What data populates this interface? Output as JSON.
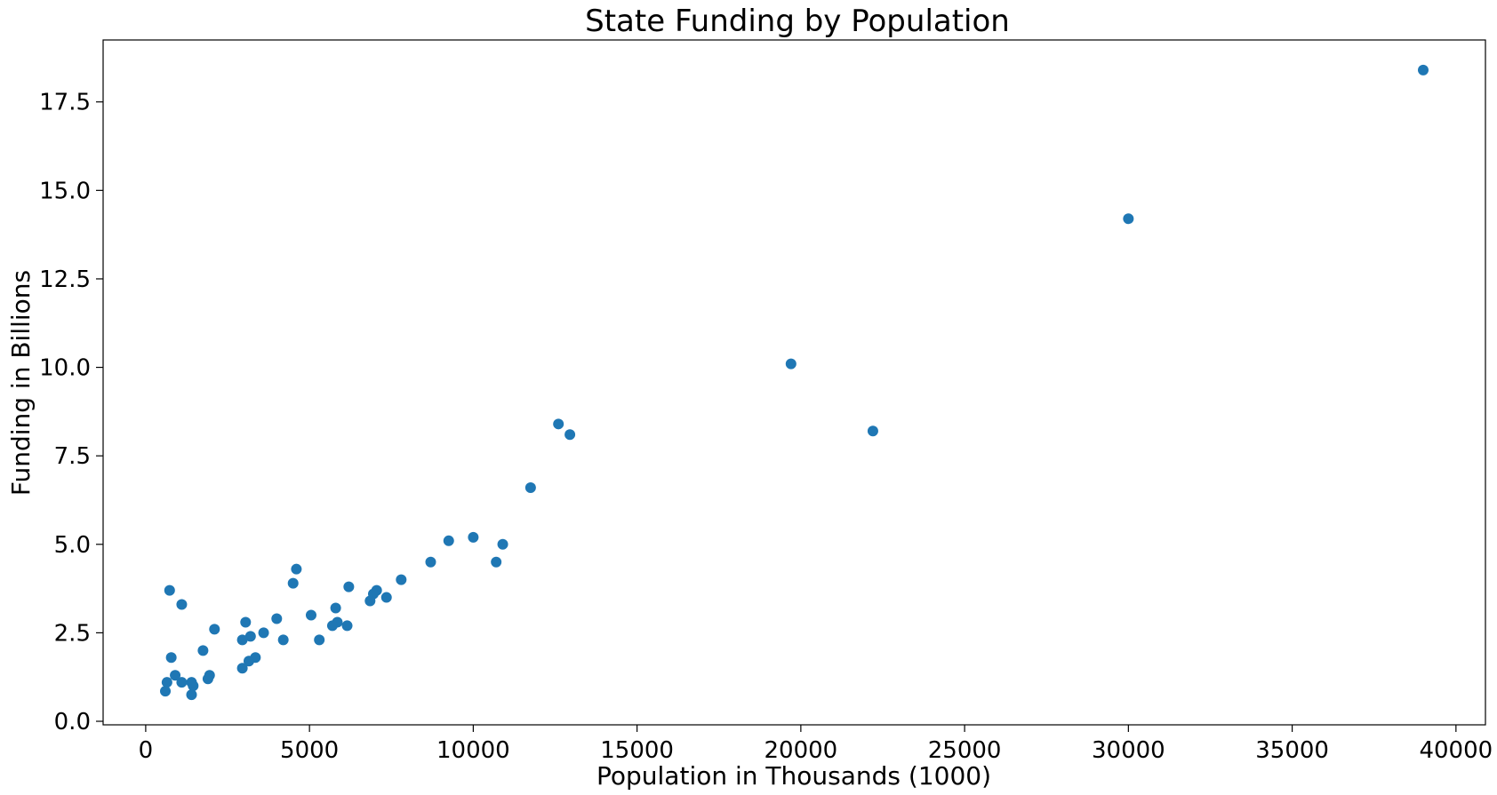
{
  "chart_data": {
    "type": "scatter",
    "title": "State Funding by Population",
    "xlabel": "Population in Thousands (1000)",
    "ylabel": "Funding in Billions",
    "xlim": [
      -1300,
      40900
    ],
    "ylim": [
      -0.1,
      19.25
    ],
    "xticks": [
      0,
      5000,
      10000,
      15000,
      20000,
      25000,
      30000,
      35000,
      40000
    ],
    "xtick_labels": [
      "0",
      "5000",
      "10000",
      "15000",
      "20000",
      "25000",
      "30000",
      "35000",
      "40000"
    ],
    "yticks": [
      0,
      2.5,
      5,
      7.5,
      10,
      12.5,
      15,
      17.5
    ],
    "ytick_labels": [
      "0.0",
      "2.5",
      "5.0",
      "7.5",
      "10.0",
      "12.5",
      "15.0",
      "17.5"
    ],
    "grid": false,
    "color": "#1f77b4",
    "points": [
      [
        39000,
        18.4
      ],
      [
        30000,
        14.2
      ],
      [
        22200,
        8.2
      ],
      [
        19700,
        10.1
      ],
      [
        12950,
        8.1
      ],
      [
        12600,
        8.4
      ],
      [
        11750,
        6.6
      ],
      [
        10900,
        5.0
      ],
      [
        10700,
        4.5
      ],
      [
        10000,
        5.2
      ],
      [
        9250,
        5.1
      ],
      [
        8700,
        4.5
      ],
      [
        7800,
        4.0
      ],
      [
        7350,
        3.5
      ],
      [
        7050,
        3.7
      ],
      [
        6950,
        3.6
      ],
      [
        6850,
        3.4
      ],
      [
        6200,
        3.8
      ],
      [
        6150,
        2.7
      ],
      [
        5850,
        2.8
      ],
      [
        5800,
        3.2
      ],
      [
        5700,
        2.7
      ],
      [
        5300,
        2.3
      ],
      [
        5050,
        3.0
      ],
      [
        4600,
        4.3
      ],
      [
        4500,
        3.9
      ],
      [
        4200,
        2.3
      ],
      [
        4000,
        2.9
      ],
      [
        3600,
        2.5
      ],
      [
        3350,
        1.8
      ],
      [
        3200,
        2.4
      ],
      [
        3150,
        1.7
      ],
      [
        3050,
        2.8
      ],
      [
        2950,
        2.3
      ],
      [
        2950,
        1.5
      ],
      [
        2100,
        2.6
      ],
      [
        1950,
        1.3
      ],
      [
        1900,
        1.2
      ],
      [
        1750,
        2.0
      ],
      [
        1450,
        1.0
      ],
      [
        1400,
        1.1
      ],
      [
        1400,
        0.75
      ],
      [
        1100,
        3.3
      ],
      [
        1100,
        1.1
      ],
      [
        900,
        1.3
      ],
      [
        780,
        1.8
      ],
      [
        730,
        3.7
      ],
      [
        650,
        1.1
      ],
      [
        600,
        0.85
      ]
    ]
  }
}
